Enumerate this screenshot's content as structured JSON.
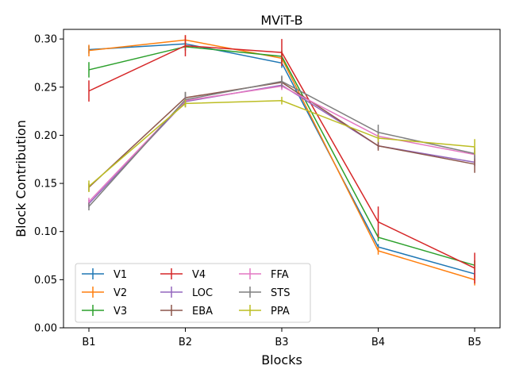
{
  "chart_data": {
    "type": "line",
    "title": "MViT-B",
    "xlabel": "Blocks",
    "ylabel": "Block Contribution",
    "categories": [
      "B1",
      "B2",
      "B3",
      "B4",
      "B5"
    ],
    "ylim": [
      0.0,
      0.31
    ],
    "yticks": [
      "0.00",
      "0.05",
      "0.10",
      "0.15",
      "0.20",
      "0.25",
      "0.30"
    ],
    "grid": false,
    "legend_position": "lower-left",
    "legend_columns": 3,
    "series": [
      {
        "name": "V1",
        "color": "#1f77b4",
        "values": [
          0.289,
          0.295,
          0.275,
          0.084,
          0.056
        ],
        "errors": [
          0.004,
          0.003,
          0.005,
          0.003,
          0.004
        ]
      },
      {
        "name": "V2",
        "color": "#ff7f0e",
        "values": [
          0.288,
          0.299,
          0.28,
          0.08,
          0.05
        ],
        "errors": [
          0.006,
          0.005,
          0.006,
          0.004,
          0.006
        ]
      },
      {
        "name": "V3",
        "color": "#2ca02c",
        "values": [
          0.268,
          0.292,
          0.282,
          0.094,
          0.065
        ],
        "errors": [
          0.008,
          0.004,
          0.006,
          0.004,
          0.005
        ]
      },
      {
        "name": "V4",
        "color": "#d62728",
        "values": [
          0.246,
          0.293,
          0.286,
          0.11,
          0.062
        ],
        "errors": [
          0.011,
          0.011,
          0.014,
          0.016,
          0.016
        ]
      },
      {
        "name": "LOC",
        "color": "#9467bd",
        "values": [
          0.129,
          0.235,
          0.252,
          0.189,
          0.172
        ],
        "errors": [
          0.004,
          0.005,
          0.004,
          0.003,
          0.004
        ]
      },
      {
        "name": "EBA",
        "color": "#8c564b",
        "values": [
          0.146,
          0.239,
          0.255,
          0.189,
          0.17
        ],
        "errors": [
          0.004,
          0.006,
          0.006,
          0.005,
          0.009
        ]
      },
      {
        "name": "FFA",
        "color": "#e377c2",
        "values": [
          0.131,
          0.236,
          0.251,
          0.199,
          0.18
        ],
        "errors": [
          0.004,
          0.004,
          0.004,
          0.004,
          0.004
        ]
      },
      {
        "name": "STS",
        "color": "#7f7f7f",
        "values": [
          0.126,
          0.237,
          0.256,
          0.203,
          0.181
        ],
        "errors": [
          0.004,
          0.008,
          0.006,
          0.008,
          0.006
        ]
      },
      {
        "name": "PPA",
        "color": "#bcbd22",
        "values": [
          0.147,
          0.233,
          0.236,
          0.197,
          0.188
        ],
        "errors": [
          0.006,
          0.004,
          0.004,
          0.004,
          0.008
        ]
      }
    ]
  }
}
